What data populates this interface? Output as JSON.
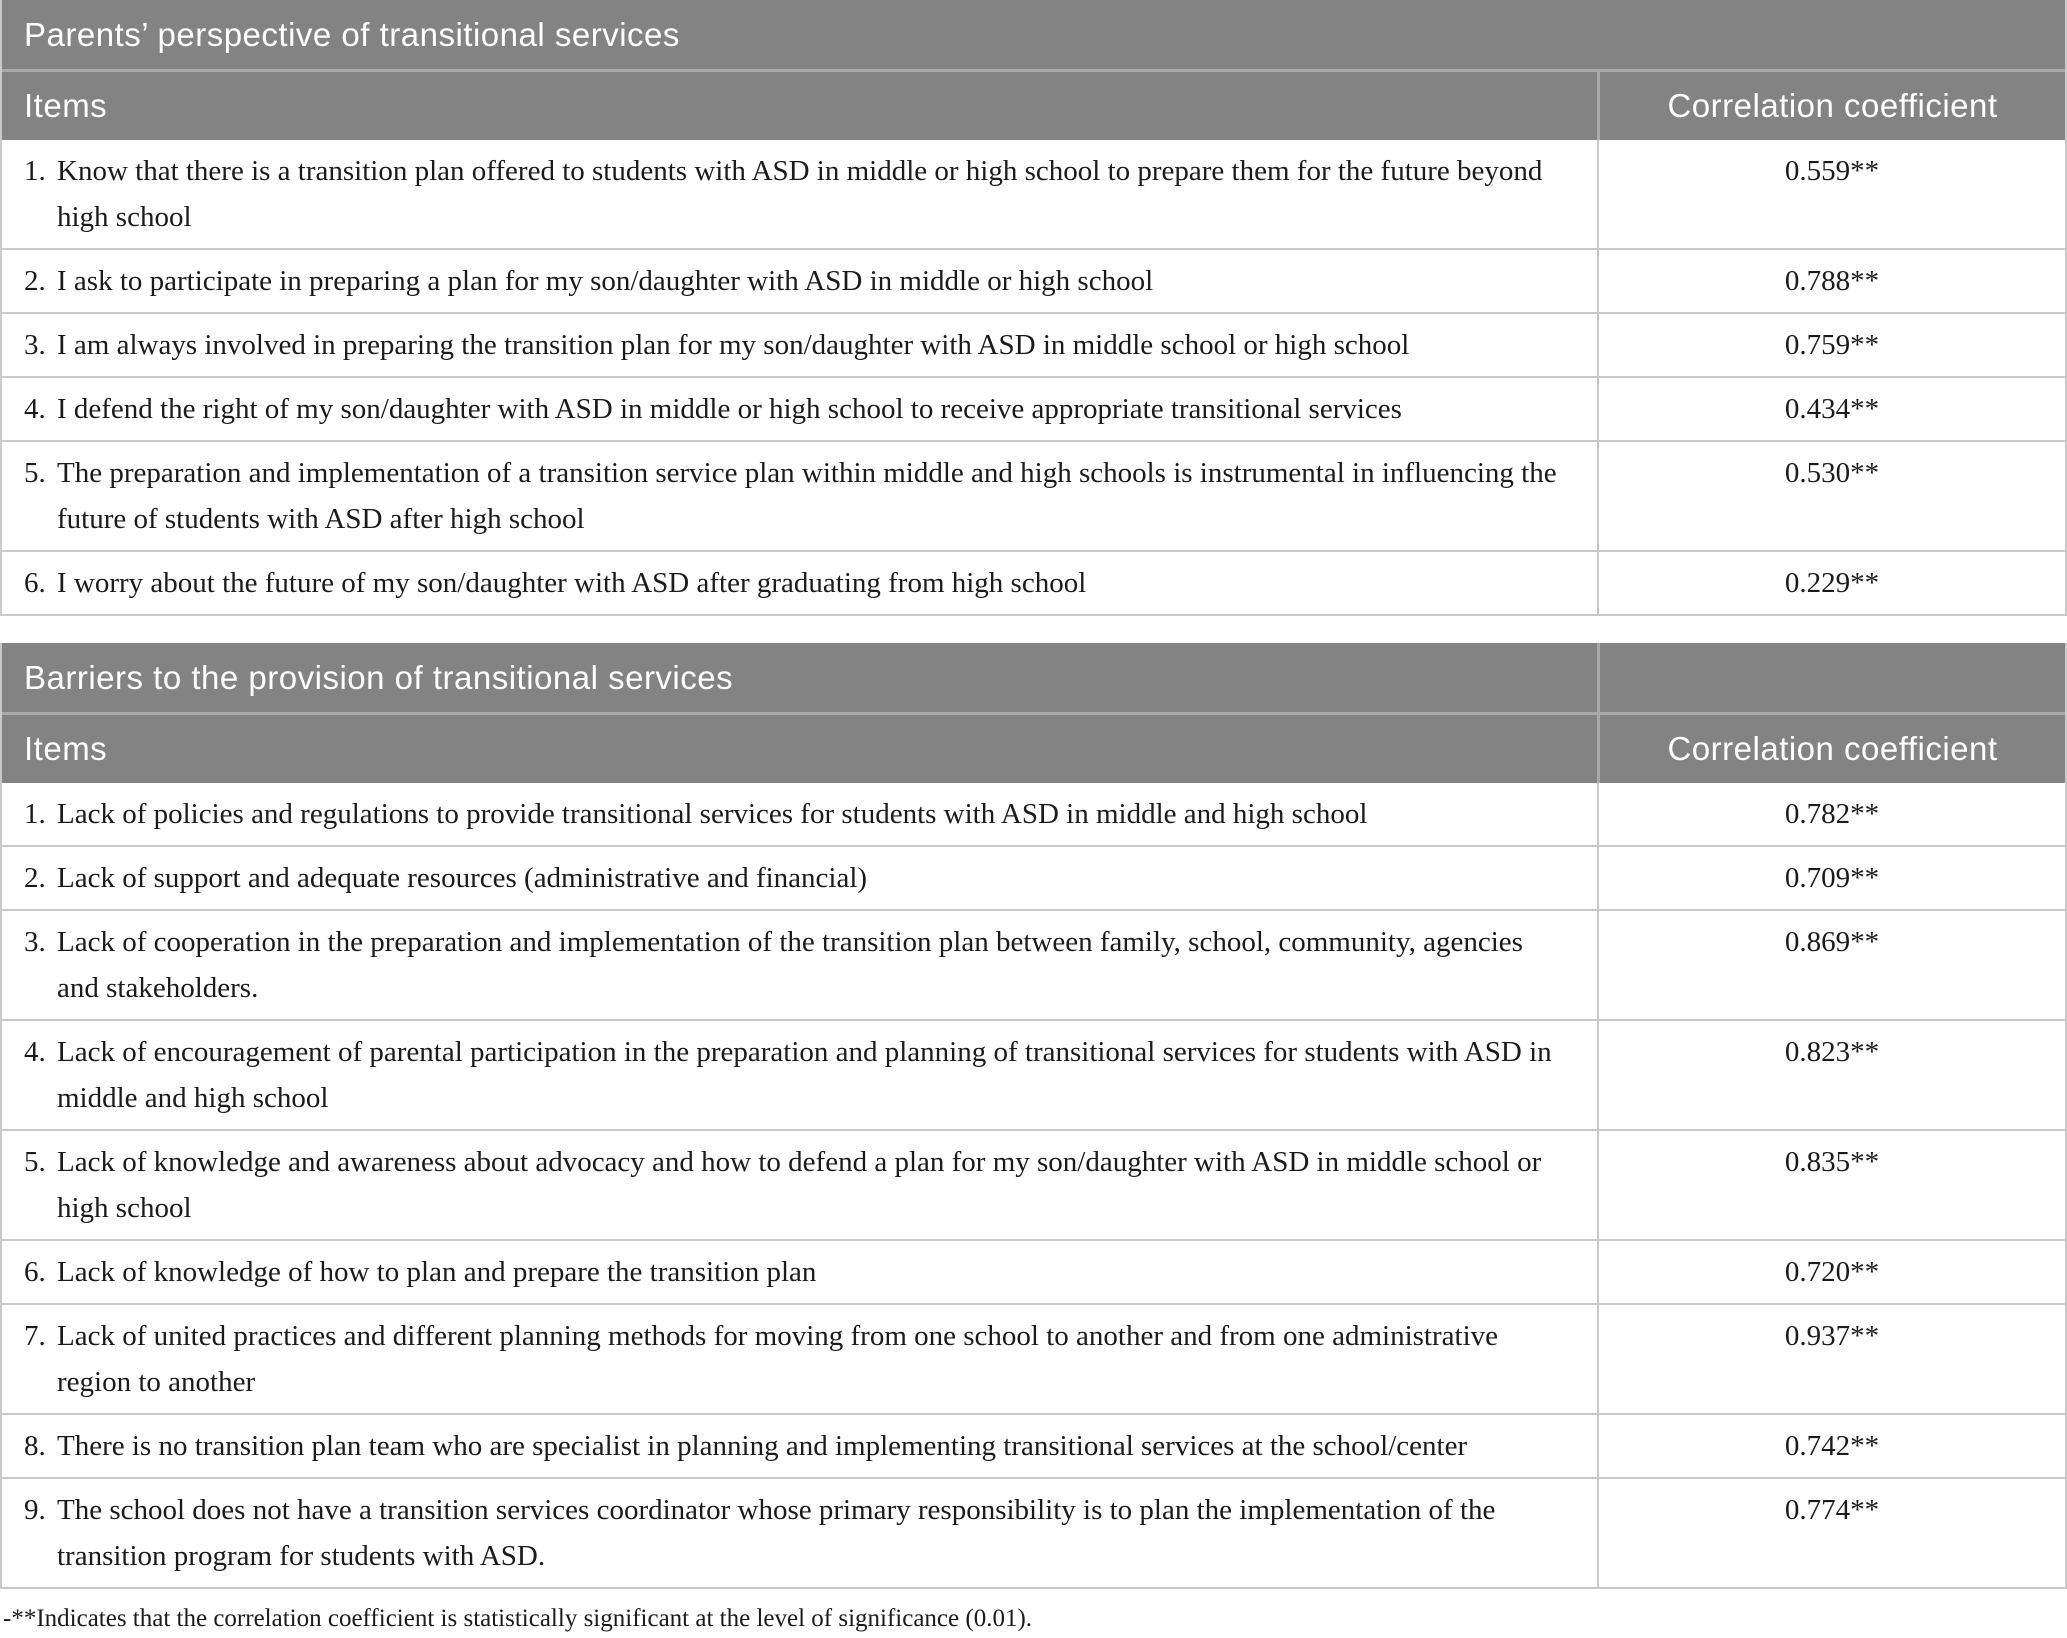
{
  "colors": {
    "header_bg": "#838383",
    "header_text": "#ffffff",
    "row_border": "#c9c9c9",
    "header_divider": "#a9a9a9",
    "body_text": "#1b1b1b"
  },
  "tables": [
    {
      "title": "Parents’ perspective of transitional services",
      "columns": {
        "items": "Items",
        "coefficient": "Correlation coefficient"
      },
      "rows": [
        {
          "num": "1.",
          "text": "Know that there is a transition plan offered to students with ASD in middle or high school to prepare them for the future beyond high school",
          "value": "0.559**"
        },
        {
          "num": "2.",
          "text": "I ask to participate in preparing a plan for my son/daughter with ASD in middle or high school",
          "value": "0.788**"
        },
        {
          "num": "3.",
          "text": "I am always involved in preparing the transition plan for my son/daughter with ASD in middle school or high school",
          "value": "0.759**"
        },
        {
          "num": "4.",
          "text": "I defend the right of my son/daughter with ASD in middle or high school to receive appropriate transitional services",
          "value": "0.434**"
        },
        {
          "num": "5.",
          "text": "The preparation and implementation of a transition service plan within middle and high schools is instrumental in influencing the future of students with ASD after high school",
          "value": "0.530**"
        },
        {
          "num": "6.",
          "text": "I worry about the future of my son/daughter with ASD after graduating from high school",
          "value": "0.229**"
        }
      ]
    },
    {
      "title": "Barriers to the provision of transitional services",
      "columns": {
        "items": "Items",
        "coefficient": "Correlation coefficient"
      },
      "rows": [
        {
          "num": "1.",
          "text": "Lack of policies and regulations to provide transitional services for students with ASD in middle and high school",
          "value": "0.782**"
        },
        {
          "num": "2.",
          "text": "Lack of support and adequate resources (administrative and financial)",
          "value": "0.709**"
        },
        {
          "num": "3.",
          "text": "Lack of cooperation in the preparation and implementation of the transition plan between family, school, community, agencies and stakeholders.",
          "value": "0.869**"
        },
        {
          "num": "4.",
          "text": "Lack of encouragement of parental participation in the preparation and planning of transitional services for students with ASD in middle and high school",
          "value": "0.823**"
        },
        {
          "num": "5.",
          "text": "Lack of knowledge and awareness about advocacy and how to defend a plan for my son/daughter with ASD in middle school or high school",
          "value": "0.835**"
        },
        {
          "num": "6.",
          "text": "Lack of knowledge of how to plan and prepare the transition plan",
          "value": "0.720**"
        },
        {
          "num": "7.",
          "text": "Lack of united practices and different planning methods for moving from one school to another and from one administrative region to another",
          "value": "0.937**"
        },
        {
          "num": "8.",
          "text": "There is no transition plan team who are specialist in planning and implementing transitional services at the school/center",
          "value": "0.742**"
        },
        {
          "num": "9.",
          "text": "The school does not have a transition services coordinator whose primary responsibility is to plan the implementation of the transition program for students with ASD.",
          "value": "0.774**"
        }
      ]
    }
  ],
  "footnote": "-**Indicates that the correlation coefficient is statistically significant at the level of significance (0.01)."
}
